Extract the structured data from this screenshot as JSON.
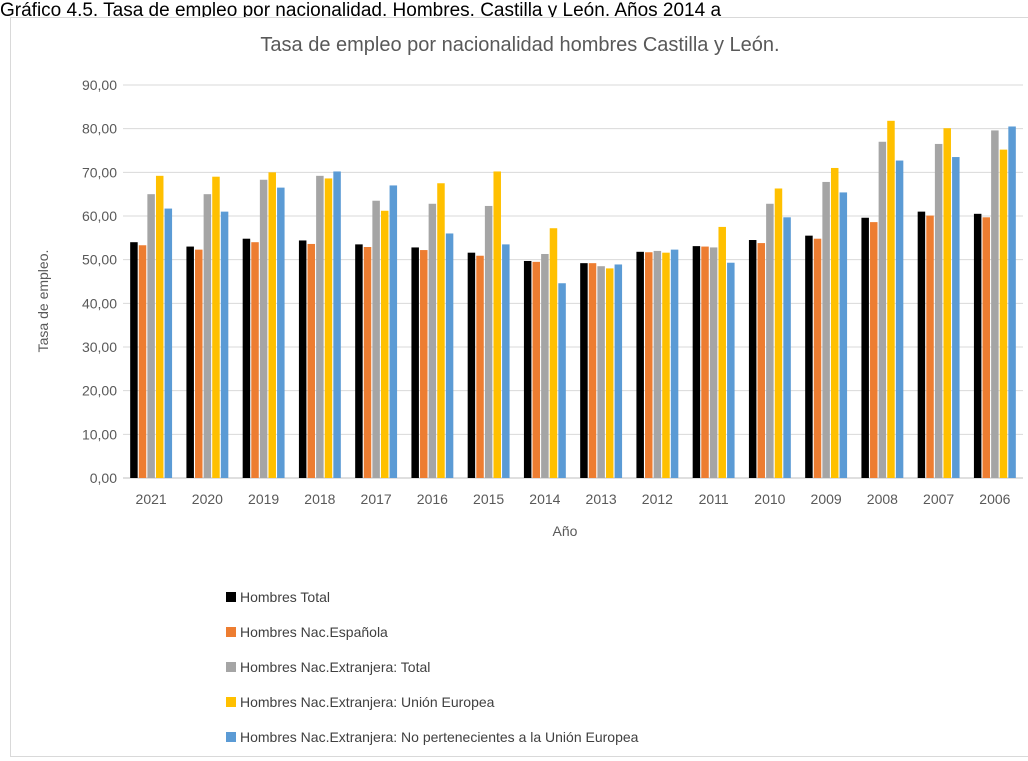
{
  "caption": "Gráfico 4.5. Tasa de empleo por nacionalidad. Hombres. Castilla y León. Años 2014 a",
  "chart_data": {
    "type": "bar",
    "title": "Tasa de empleo por nacionalidad hombres Castilla y León.",
    "xlabel": "Año",
    "ylabel": "Tasa de empleo.",
    "ylim": [
      0,
      90
    ],
    "yticks": [
      "0,00",
      "10,00",
      "20,00",
      "30,00",
      "40,00",
      "50,00",
      "60,00",
      "70,00",
      "80,00",
      "90,00"
    ],
    "grid": true,
    "legend_position": "bottom-left",
    "categories": [
      "2021",
      "2020",
      "2019",
      "2018",
      "2017",
      "2016",
      "2015",
      "2014",
      "2013",
      "2012",
      "2011",
      "2010",
      "2009",
      "2008",
      "2007",
      "2006"
    ],
    "series": [
      {
        "name": "Hombres Total",
        "color": "#000000",
        "values": [
          54.0,
          53.0,
          54.8,
          54.4,
          53.5,
          52.8,
          51.6,
          49.7,
          49.2,
          51.8,
          53.1,
          54.5,
          55.5,
          59.6,
          61.0,
          60.5
        ]
      },
      {
        "name": "Hombres Nac.Española",
        "color": "#ed7d31",
        "values": [
          53.3,
          52.3,
          54.0,
          53.6,
          52.9,
          52.2,
          50.9,
          49.5,
          49.2,
          51.7,
          53.0,
          53.8,
          54.8,
          58.6,
          60.1,
          59.7
        ]
      },
      {
        "name": "Hombres Nac.Extranjera: Total",
        "color": "#a5a5a5",
        "values": [
          65.0,
          65.0,
          68.3,
          69.2,
          63.5,
          62.8,
          62.3,
          51.3,
          48.5,
          52.0,
          52.8,
          62.8,
          67.8,
          77.0,
          76.5,
          79.6
        ]
      },
      {
        "name": "Hombres Nac.Extranjera: Unión Europea",
        "color": "#ffc000",
        "values": [
          69.2,
          69.0,
          70.0,
          68.6,
          61.2,
          67.5,
          70.2,
          57.2,
          48.0,
          51.6,
          57.5,
          66.3,
          71.0,
          81.8,
          80.1,
          75.2
        ]
      },
      {
        "name": "Hombres Nac.Extranjera: No pertenecientes a la Unión Europea",
        "color": "#5b9bd5",
        "values": [
          61.7,
          61.0,
          66.5,
          70.2,
          67.0,
          56.0,
          53.5,
          44.6,
          48.9,
          52.3,
          49.3,
          59.7,
          65.4,
          72.7,
          73.5,
          80.5
        ]
      }
    ]
  }
}
